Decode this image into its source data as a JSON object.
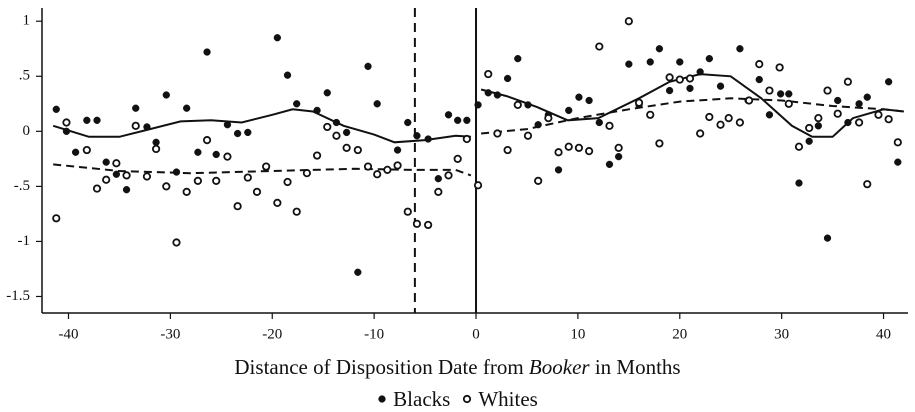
{
  "chart_data": {
    "type": "scatter",
    "xlabel": [
      "Distance of Disposition Date from ",
      "Booker",
      " in Months"
    ],
    "xlim": [
      -42.6,
      42.4
    ],
    "ylim": [
      -1.65,
      1.12
    ],
    "xticks": [
      -40,
      -30,
      -20,
      -10,
      0,
      10,
      20,
      30,
      40
    ],
    "yticks": [
      1,
      {
        "value": 0.5,
        "label": ".5"
      },
      0,
      {
        "value": -0.5,
        "label": "-.5"
      },
      -1,
      -1.5
    ],
    "color": "#111111",
    "vlines": [
      {
        "x": -6,
        "style": "dashed"
      },
      {
        "x": 0,
        "style": "solid"
      }
    ],
    "series": [
      {
        "name": "Blacks",
        "marker": "filled",
        "x": [
          -41.2,
          -40.2,
          -39.3,
          -38.2,
          -37.2,
          -36.3,
          -35.3,
          -34.3,
          -33.4,
          -32.3,
          -31.4,
          -30.4,
          -29.4,
          -28.4,
          -27.3,
          -26.4,
          -25.5,
          -24.4,
          -23.4,
          -22.4,
          -20.6,
          -19.5,
          -18.5,
          -17.6,
          -15.6,
          -14.6,
          -13.7,
          -12.7,
          -11.6,
          -10.6,
          -9.7,
          -7.7,
          -6.7,
          -5.8,
          -4.7,
          -3.7,
          -2.7,
          -1.8,
          -0.9,
          0.2,
          1.2,
          2.1,
          3.1,
          4.1,
          5.1,
          6.1,
          7.1,
          8.1,
          9.1,
          10.1,
          11.1,
          12.1,
          13.1,
          14.0,
          15.0,
          16.0,
          17.1,
          18.0,
          19.0,
          20.0,
          21.0,
          22.0,
          22.9,
          24.0,
          25.9,
          26.7,
          27.8,
          28.8,
          29.9,
          30.7,
          31.7,
          32.7,
          33.6,
          34.5,
          35.5,
          36.5,
          37.6,
          38.4,
          39.5,
          40.5,
          41.4
        ],
        "values": [
          0.2,
          0,
          -0.19,
          0.1,
          0.1,
          -0.28,
          -0.39,
          -0.53,
          0.21,
          0.04,
          -0.1,
          0.33,
          -0.37,
          0.21,
          -0.19,
          0.72,
          -0.21,
          0.06,
          -0.02,
          -0.01,
          -0.33,
          0.85,
          0.51,
          0.25,
          0.19,
          0.35,
          0.08,
          -0.01,
          -1.28,
          0.59,
          0.25,
          -0.17,
          0.08,
          -0.04,
          -0.07,
          -0.43,
          0.15,
          0.1,
          0.1,
          0.24,
          0.35,
          0.33,
          0.48,
          0.66,
          0.24,
          0.06,
          0.15,
          -0.35,
          0.19,
          0.31,
          0.28,
          0.08,
          -0.3,
          -0.23,
          0.61,
          0.24,
          0.63,
          0.75,
          0.37,
          0.63,
          0.39,
          0.54,
          0.66,
          0.41,
          0.75,
          0.28,
          0.47,
          0.15,
          0.34,
          0.34,
          -0.47,
          -0.09,
          0.05,
          -0.97,
          0.28,
          0.08,
          0.25,
          0.31,
          0.15,
          0.45,
          -0.28
        ]
      },
      {
        "name": "Whites",
        "marker": "open",
        "x": [
          -41.2,
          -40.2,
          -38.2,
          -37.2,
          -36.3,
          -35.3,
          -34.3,
          -33.4,
          -32.3,
          -31.4,
          -30.4,
          -29.4,
          -28.4,
          -27.3,
          -26.4,
          -25.5,
          -24.4,
          -23.4,
          -22.4,
          -21.5,
          -20.6,
          -19.5,
          -18.5,
          -17.6,
          -16.6,
          -15.6,
          -14.6,
          -13.7,
          -12.7,
          -11.6,
          -10.6,
          -9.7,
          -8.7,
          -7.7,
          -6.7,
          -5.8,
          -4.7,
          -3.7,
          -2.7,
          -1.8,
          -0.9,
          0.2,
          1.2,
          2.1,
          3.1,
          4.1,
          5.1,
          6.1,
          7.1,
          8.1,
          9.1,
          10.1,
          11.1,
          12.1,
          13.1,
          14.0,
          15.0,
          16.0,
          17.1,
          18.0,
          19.0,
          20.0,
          21.0,
          22.0,
          22.9,
          24.0,
          24.8,
          25.9,
          26.8,
          27.8,
          28.8,
          29.8,
          30.7,
          31.7,
          32.7,
          33.6,
          34.5,
          35.5,
          36.5,
          37.6,
          38.4,
          39.5,
          40.5,
          41.4
        ],
        "values": [
          -0.79,
          0.08,
          -0.17,
          -0.52,
          -0.44,
          -0.29,
          -0.4,
          0.05,
          -0.41,
          -0.16,
          -0.5,
          -1.01,
          -0.55,
          -0.45,
          -0.08,
          -0.45,
          -0.23,
          -0.68,
          -0.42,
          -0.55,
          -0.32,
          -0.65,
          -0.46,
          -0.73,
          -0.38,
          -0.22,
          0.04,
          -0.04,
          -0.15,
          -0.17,
          -0.32,
          -0.39,
          -0.35,
          -0.31,
          -0.73,
          -0.84,
          -0.85,
          -0.55,
          -0.4,
          -0.25,
          -0.07,
          -0.49,
          0.52,
          -0.02,
          -0.17,
          0.24,
          -0.04,
          -0.45,
          0.12,
          -0.19,
          -0.14,
          -0.15,
          -0.18,
          0.77,
          0.05,
          -0.15,
          1.0,
          0.26,
          0.15,
          -0.11,
          0.49,
          0.47,
          0.48,
          -0.02,
          0.13,
          0.06,
          0.12,
          0.08,
          0.28,
          0.61,
          0.37,
          0.58,
          0.25,
          -0.14,
          0.03,
          0.12,
          0.37,
          0.16,
          0.45,
          0.08,
          -0.48,
          0.15,
          0.11,
          -0.1
        ]
      }
    ],
    "fits": [
      {
        "style": "solid",
        "x": [
          -41.5,
          -38,
          -35,
          -32,
          -29,
          -26,
          -23,
          -20,
          -18,
          -16,
          -13,
          -10,
          -8,
          -5,
          -2,
          -0.5,
          null,
          0.5,
          3,
          6,
          9,
          12,
          16,
          19,
          22,
          25,
          28,
          31,
          33,
          35,
          37,
          40,
          42
        ],
        "values": [
          0.05,
          -0.05,
          -0.05,
          0.02,
          0.09,
          0.1,
          0.08,
          0.15,
          0.2,
          0.18,
          0.05,
          -0.03,
          -0.1,
          -0.08,
          -0.04,
          -0.05,
          null,
          0.38,
          0.32,
          0.22,
          0.1,
          0.12,
          0.3,
          0.45,
          0.52,
          0.5,
          0.3,
          0.05,
          -0.05,
          -0.05,
          0.12,
          0.2,
          0.18
        ]
      },
      {
        "style": "dashed",
        "x": [
          -41.5,
          -35,
          -28,
          -20,
          -12,
          -6,
          -2,
          -0.5,
          null,
          0.5,
          5,
          10,
          15,
          20,
          25,
          30,
          35,
          40,
          42
        ],
        "values": [
          -0.3,
          -0.36,
          -0.38,
          -0.36,
          -0.34,
          -0.35,
          -0.35,
          -0.4,
          null,
          -0.02,
          0.02,
          0.12,
          0.2,
          0.27,
          0.3,
          0.28,
          0.23,
          0.2,
          0.18
        ]
      }
    ]
  }
}
